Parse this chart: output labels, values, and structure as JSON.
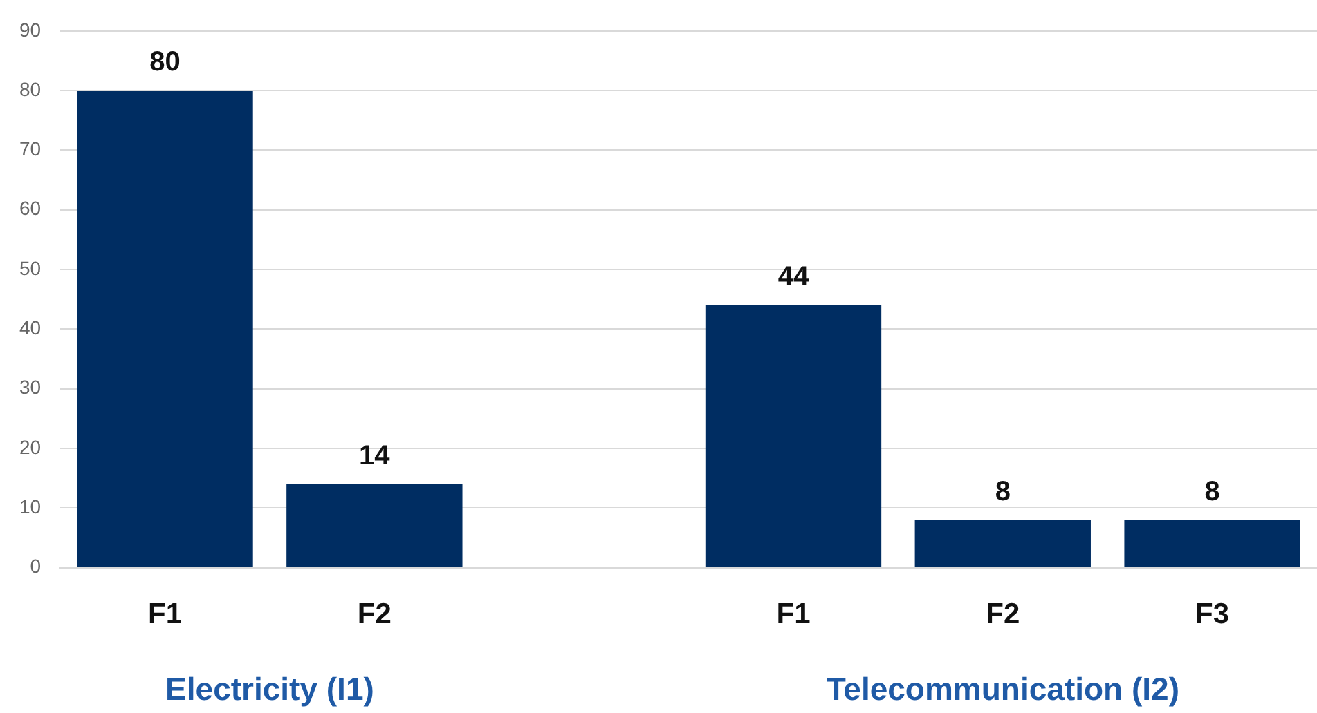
{
  "chart_data": {
    "type": "bar",
    "categories": [
      "F1",
      "F2",
      null,
      "F1",
      "F2",
      "F3"
    ],
    "values": [
      80,
      14,
      null,
      44,
      8,
      8
    ],
    "color": "#002d62",
    "ylim": [
      0,
      90
    ],
    "yticks": [
      0,
      10,
      20,
      30,
      40,
      50,
      60,
      70,
      80,
      90
    ],
    "grid": "y",
    "data_labels": true,
    "legend": false,
    "annotations": [
      "Electricity (I1)",
      "Telecommunication (I2)"
    ]
  }
}
